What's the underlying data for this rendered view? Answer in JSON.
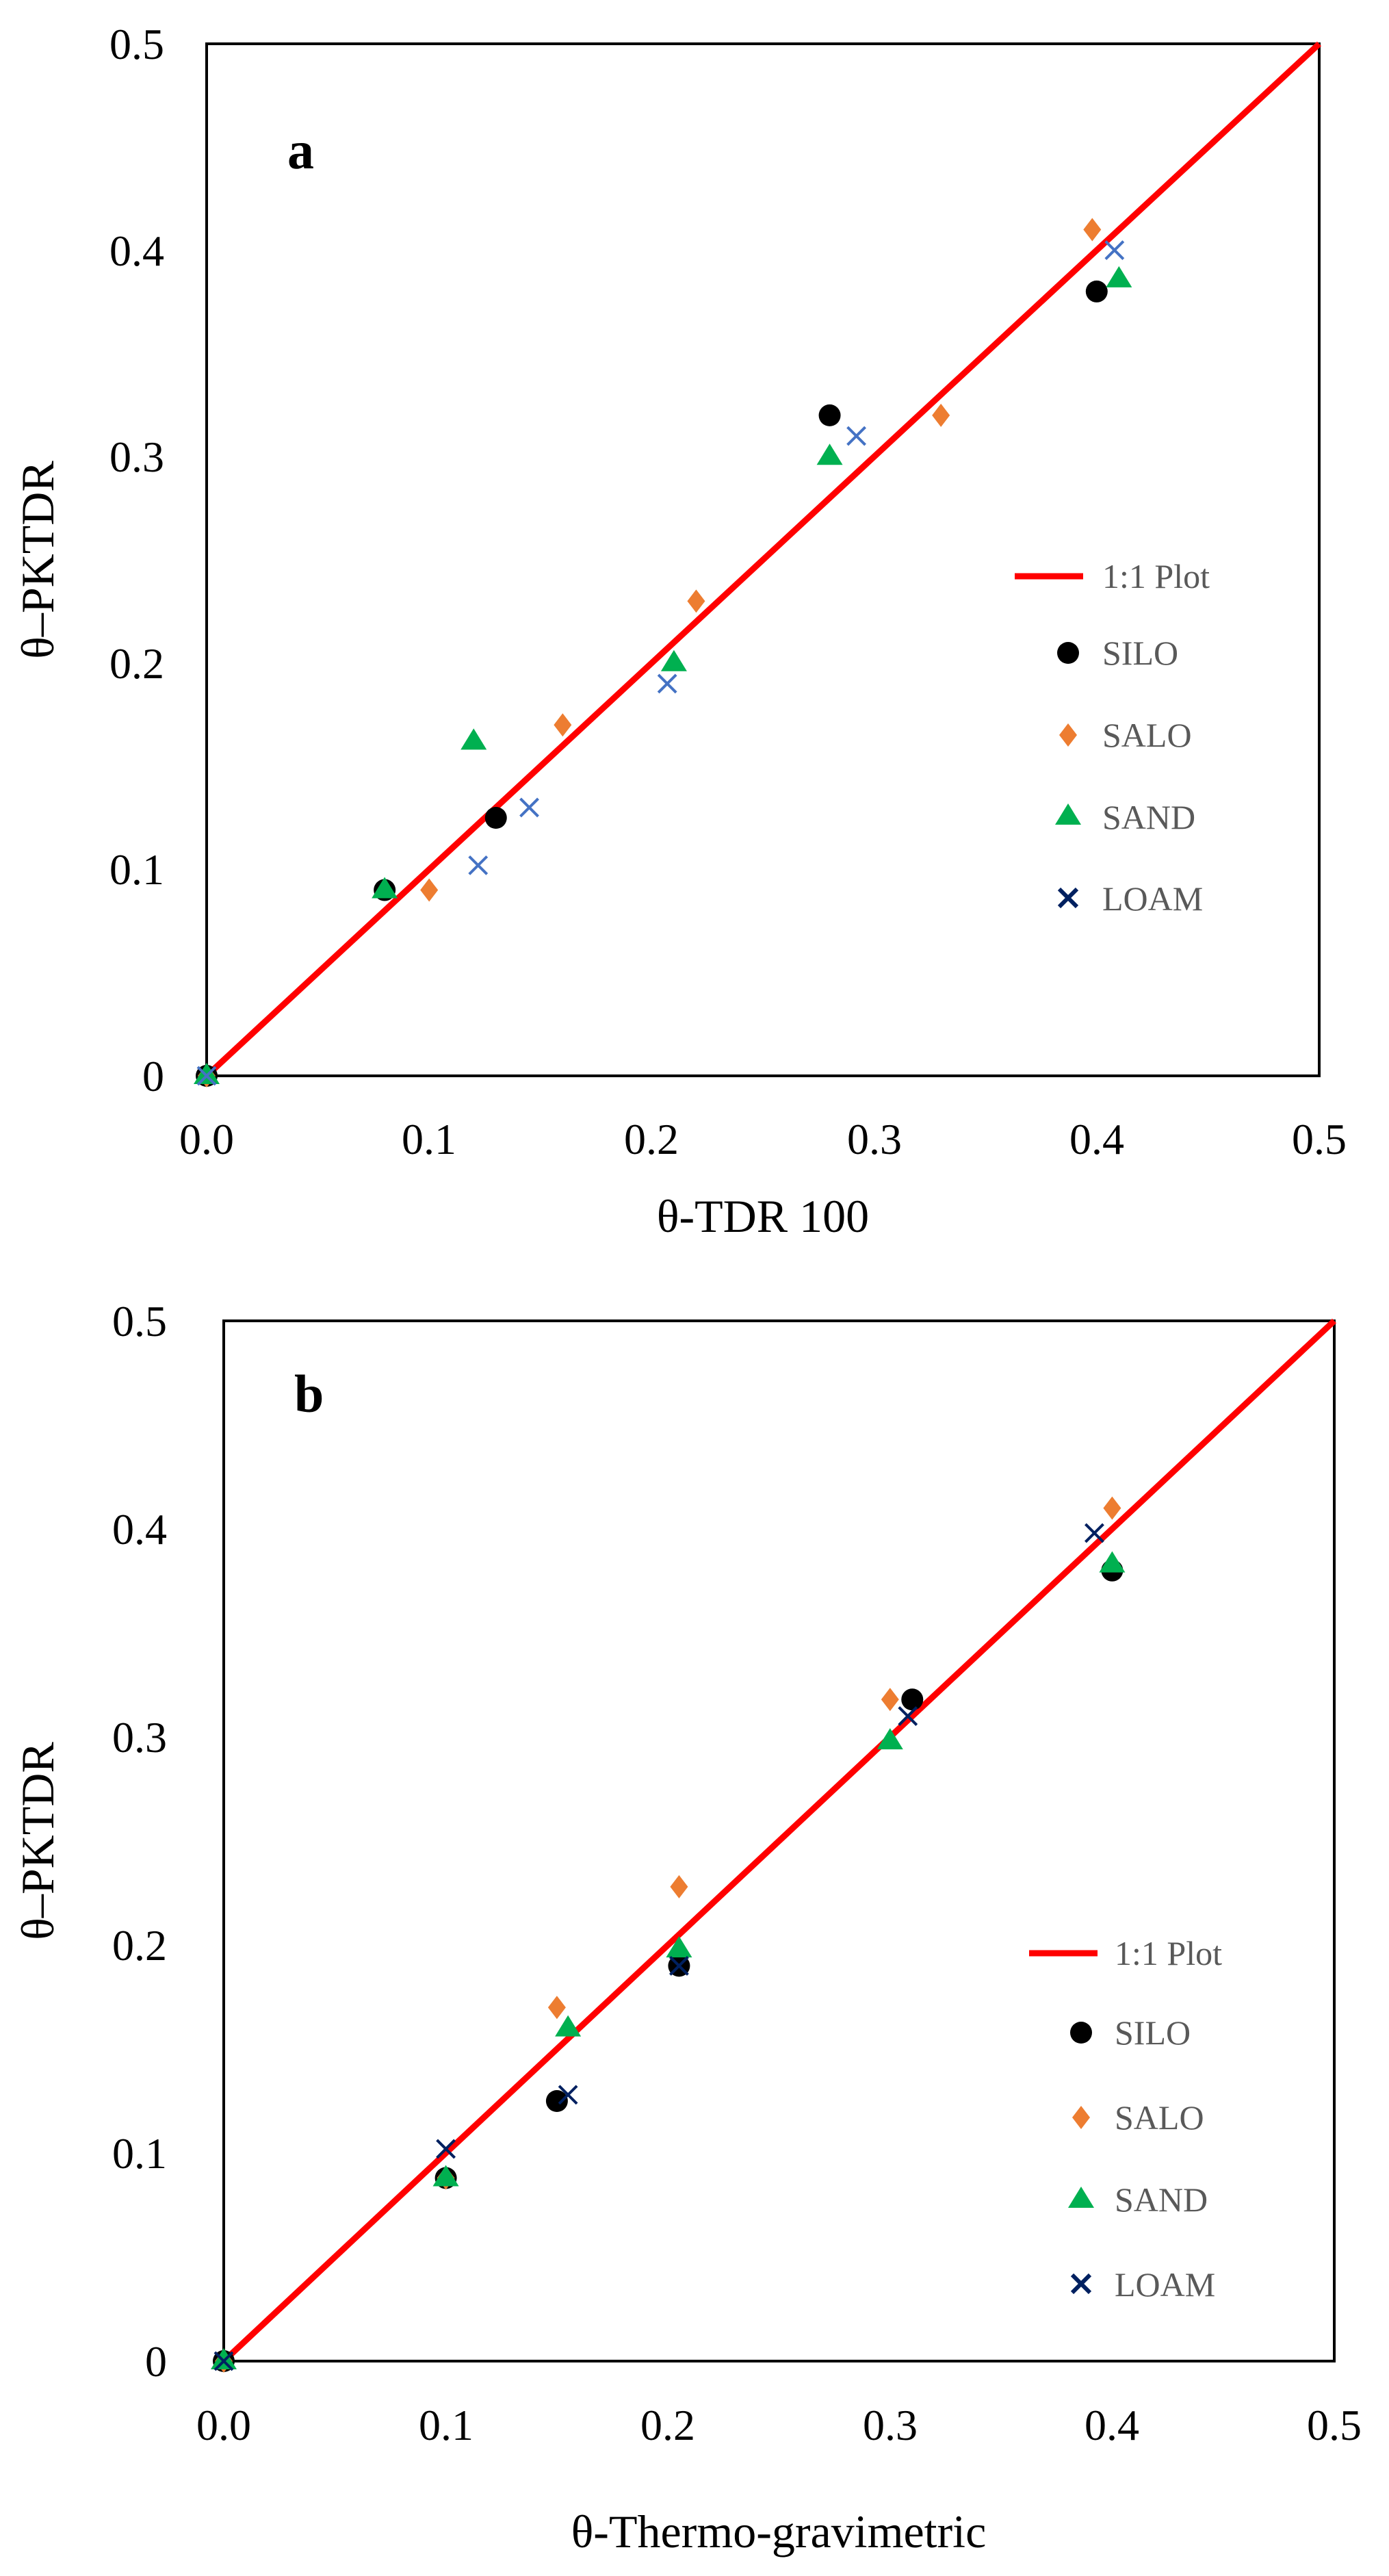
{
  "chart_data": [
    {
      "type": "scatter",
      "panel_label": "a",
      "xlabel": "θ-TDR 100",
      "ylabel": "θ–PKTDR",
      "xlim": [
        0,
        0.5
      ],
      "ylim": [
        0,
        0.5
      ],
      "x_ticks": [
        "0.0",
        "0.1",
        "0.2",
        "0.3",
        "0.4",
        "0.5"
      ],
      "y_ticks": [
        "0",
        "0.1",
        "0.2",
        "0.3",
        "0.4",
        "0.5"
      ],
      "grid": false,
      "legend_position": "right-middle",
      "reference_line": {
        "name": "1:1 Plot",
        "x": [
          0,
          0.5
        ],
        "y": [
          0,
          0.5
        ],
        "color": "#ff0000"
      },
      "series": [
        {
          "name": "SILO",
          "marker": "circle",
          "color": "#000000",
          "x": [
            0,
            0.08,
            0.13,
            0.28,
            0.4
          ],
          "y": [
            0,
            0.09,
            0.125,
            0.32,
            0.38
          ]
        },
        {
          "name": "SALO",
          "marker": "diamond",
          "color": "#ed7d31",
          "x": [
            0,
            0.1,
            0.16,
            0.22,
            0.33,
            0.398
          ],
          "y": [
            0,
            0.09,
            0.17,
            0.23,
            0.32,
            0.41
          ]
        },
        {
          "name": "SAND",
          "marker": "triangle",
          "color": "#00b050",
          "x": [
            0,
            0.08,
            0.12,
            0.21,
            0.28,
            0.41
          ],
          "y": [
            0,
            0.09,
            0.162,
            0.2,
            0.3,
            0.386
          ]
        },
        {
          "name": "LOAM",
          "marker": "x",
          "color": "#4472c4",
          "legend_color": "#002060",
          "x": [
            0,
            0.122,
            0.145,
            0.207,
            0.292,
            0.408
          ],
          "y": [
            0,
            0.102,
            0.13,
            0.19,
            0.31,
            0.4
          ]
        }
      ]
    },
    {
      "type": "scatter",
      "panel_label": "b",
      "xlabel": "θ-Thermo-gravimetric",
      "ylabel": "θ–PKTDR",
      "xlim": [
        0,
        0.5
      ],
      "ylim": [
        0,
        0.5
      ],
      "x_ticks": [
        "0.0",
        "0.1",
        "0.2",
        "0.3",
        "0.4",
        "0.5"
      ],
      "y_ticks": [
        "0",
        "0.1",
        "0.2",
        "0.3",
        "0.4",
        "0.5"
      ],
      "grid": false,
      "legend_position": "right-lower",
      "reference_line": {
        "name": "1:1 Plot",
        "x": [
          0,
          0.5
        ],
        "y": [
          0,
          0.5
        ],
        "color": "#ff0000"
      },
      "series": [
        {
          "name": "SILO",
          "marker": "circle",
          "color": "#000000",
          "x": [
            0,
            0.1,
            0.15,
            0.205,
            0.31,
            0.4
          ],
          "y": [
            0,
            0.088,
            0.125,
            0.19,
            0.318,
            0.38
          ]
        },
        {
          "name": "SALO",
          "marker": "diamond",
          "color": "#ed7d31",
          "x": [
            0,
            0.1,
            0.15,
            0.205,
            0.3,
            0.4
          ],
          "y": [
            0,
            0.088,
            0.17,
            0.228,
            0.318,
            0.41
          ]
        },
        {
          "name": "SAND",
          "marker": "triangle",
          "color": "#00b050",
          "x": [
            0,
            0.1,
            0.155,
            0.205,
            0.3,
            0.4
          ],
          "y": [
            0,
            0.088,
            0.16,
            0.198,
            0.298,
            0.383
          ]
        },
        {
          "name": "LOAM",
          "marker": "x",
          "color": "#002060",
          "x": [
            0,
            0.1,
            0.155,
            0.205,
            0.308,
            0.392
          ],
          "y": [
            0,
            0.102,
            0.128,
            0.19,
            0.31,
            0.398
          ]
        }
      ]
    }
  ]
}
